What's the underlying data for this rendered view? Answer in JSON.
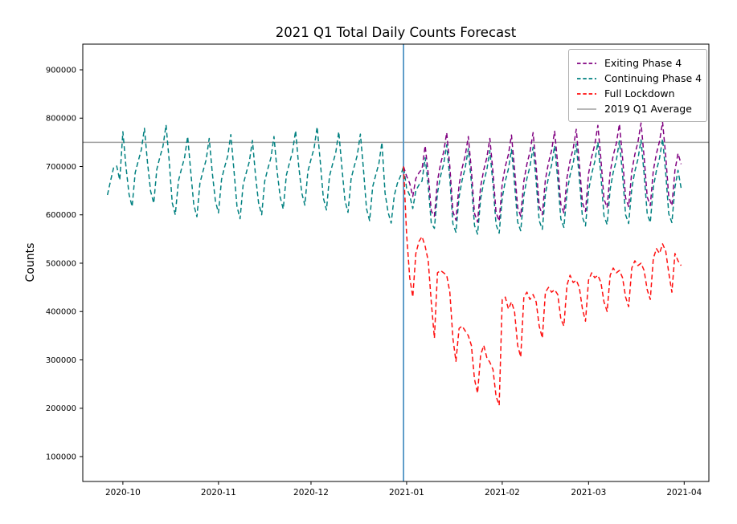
{
  "figure": {
    "title": "2021 Q1 Total Daily Counts Forecast",
    "ylabel": "Counts"
  },
  "chart_data": {
    "type": "line",
    "title": "2021 Q1 Total Daily Counts Forecast",
    "xlabel": "",
    "ylabel": "Counts",
    "grid": false,
    "legend_position": "upper right",
    "axes": {
      "x_unit": "days since 2020-09-26 (daily data)",
      "x_domain_days": [
        -8,
        195
      ],
      "y_domain": [
        48500,
        953100
      ],
      "x_ticks": [
        {
          "label": "2020-10",
          "day": 5
        },
        {
          "label": "2020-11",
          "day": 36
        },
        {
          "label": "2020-12",
          "day": 66
        },
        {
          "label": "2021-01",
          "day": 97
        },
        {
          "label": "2021-02",
          "day": 128
        },
        {
          "label": "2021-03",
          "day": 156
        },
        {
          "label": "2021-04",
          "day": 187
        }
      ],
      "y_ticks": [
        {
          "label": "100000",
          "value": 100000
        },
        {
          "label": "200000",
          "value": 200000
        },
        {
          "label": "300000",
          "value": 300000
        },
        {
          "label": "400000",
          "value": 400000
        },
        {
          "label": "500000",
          "value": 500000
        },
        {
          "label": "600000",
          "value": 600000
        },
        {
          "label": "700000",
          "value": 700000
        },
        {
          "label": "800000",
          "value": 800000
        },
        {
          "label": "900000",
          "value": 900000
        }
      ]
    },
    "reference_lines": {
      "horizontal": {
        "label": "2019 Q1 Average",
        "value": 750000,
        "color": "#a0a0a0",
        "style": "solid"
      },
      "vertical": {
        "name": "forecast-start-line",
        "day": 96,
        "color": "#4f94c4",
        "style": "solid"
      }
    },
    "series": [
      {
        "name": "Exiting Phase 4",
        "color": "#800080",
        "line_style": "dashed",
        "start_date": "2020-12-31",
        "start_day": 96,
        "z": 2,
        "values": [
          700000,
          680000,
          665000,
          638000,
          675000,
          687000,
          695000,
          743000,
          685000,
          608000,
          597000,
          670000,
          705000,
          730000,
          770000,
          700000,
          607000,
          589000,
          662000,
          697000,
          722000,
          762000,
          692000,
          603000,
          585000,
          658000,
          693000,
          718000,
          758000,
          688000,
          605000,
          587000,
          665000,
          700000,
          725000,
          765000,
          695000,
          615000,
          597000,
          670000,
          705000,
          730000,
          770000,
          700000,
          618000,
          600000,
          673000,
          708000,
          733000,
          773000,
          703000,
          622000,
          604000,
          677000,
          712000,
          737000,
          777000,
          707000,
          625000,
          607000,
          685000,
          720000,
          745000,
          785000,
          715000,
          633000,
          615000,
          688000,
          723000,
          748000,
          788000,
          718000,
          635000,
          617000,
          690000,
          725000,
          750000,
          790000,
          720000,
          637000,
          619000,
          692000,
          727000,
          752000,
          792000,
          722000,
          637000,
          619000,
          692000,
          727000,
          705000
        ]
      },
      {
        "name": "Continuing Phase 4",
        "color": "#008080",
        "line_style": "dashed",
        "start_date": "2020-09-26",
        "start_day": 0,
        "z": 1,
        "values": [
          641000,
          670000,
          698000,
          701000,
          672000,
          772000,
          700000,
          642000,
          617000,
          687000,
          712000,
          735000,
          779000,
          707000,
          649000,
          624000,
          694000,
          719000,
          742000,
          786000,
          714000,
          625000,
          600000,
          670000,
          695000,
          718000,
          762000,
          690000,
          621000,
          596000,
          666000,
          691000,
          714000,
          758000,
          686000,
          629000,
          604000,
          674000,
          699000,
          722000,
          766000,
          694000,
          617000,
          592000,
          662000,
          687000,
          710000,
          754000,
          682000,
          625000,
          600000,
          670000,
          695000,
          718000,
          762000,
          690000,
          637000,
          612000,
          682000,
          707000,
          730000,
          774000,
          702000,
          645000,
          620000,
          690000,
          715000,
          738000,
          782000,
          710000,
          635000,
          610000,
          680000,
          705000,
          728000,
          772000,
          700000,
          630000,
          605000,
          675000,
          700000,
          723000,
          767000,
          695000,
          613000,
          588000,
          658000,
          683000,
          706000,
          750000,
          645000,
          605000,
          583000,
          640000,
          665000,
          680000,
          700000,
          655000,
          640000,
          613000,
          650000,
          662000,
          670000,
          718000,
          660000,
          583000,
          572000,
          645000,
          680000,
          705000,
          745000,
          675000,
          582000,
          564000,
          637000,
          672000,
          697000,
          737000,
          667000,
          578000,
          560000,
          633000,
          668000,
          693000,
          733000,
          663000,
          580000,
          562000,
          635000,
          670000,
          695000,
          735000,
          665000,
          585000,
          567000,
          640000,
          675000,
          700000,
          740000,
          670000,
          588000,
          570000,
          643000,
          678000,
          703000,
          743000,
          673000,
          592000,
          574000,
          647000,
          682000,
          707000,
          747000,
          677000,
          595000,
          577000,
          650000,
          685000,
          710000,
          750000,
          680000,
          598000,
          580000,
          653000,
          688000,
          713000,
          753000,
          683000,
          600000,
          582000,
          655000,
          690000,
          715000,
          755000,
          685000,
          602000,
          584000,
          657000,
          692000,
          717000,
          757000,
          687000,
          602000,
          584000,
          657000,
          692000,
          655000
        ]
      },
      {
        "name": "Full Lockdown",
        "color": "#ff0f0f",
        "line_style": "dashed",
        "start_date": "2020-12-31",
        "start_day": 96,
        "z": 3,
        "values": [
          700000,
          560000,
          470000,
          430000,
          520000,
          545000,
          555000,
          535000,
          505000,
          420000,
          345000,
          480000,
          485000,
          480000,
          475000,
          440000,
          345000,
          297000,
          365000,
          370000,
          360000,
          350000,
          330000,
          260000,
          231000,
          310000,
          330000,
          305000,
          295000,
          280000,
          225000,
          206000,
          425000,
          430000,
          405000,
          420000,
          400000,
          330000,
          306000,
          430000,
          440000,
          425000,
          435000,
          420000,
          370000,
          345000,
          440000,
          450000,
          440000,
          445000,
          435000,
          385000,
          370000,
          455000,
          475000,
          460000,
          465000,
          450000,
          405000,
          380000,
          465000,
          480000,
          470000,
          475000,
          460000,
          420000,
          400000,
          475000,
          490000,
          480000,
          485000,
          470000,
          430000,
          410000,
          490000,
          505000,
          495000,
          500000,
          485000,
          445000,
          425000,
          510000,
          530000,
          520000,
          540000,
          525000,
          480000,
          440000,
          520000,
          505000,
          495000
        ]
      }
    ],
    "legend_items": [
      {
        "label": "Exiting Phase 4",
        "color": "#800080",
        "dashed": true
      },
      {
        "label": "Continuing Phase 4",
        "color": "#008080",
        "dashed": true
      },
      {
        "label": "Full Lockdown",
        "color": "#ff0f0f",
        "dashed": true
      },
      {
        "label": "2019 Q1 Average",
        "color": "#a0a0a0",
        "dashed": false
      }
    ]
  }
}
